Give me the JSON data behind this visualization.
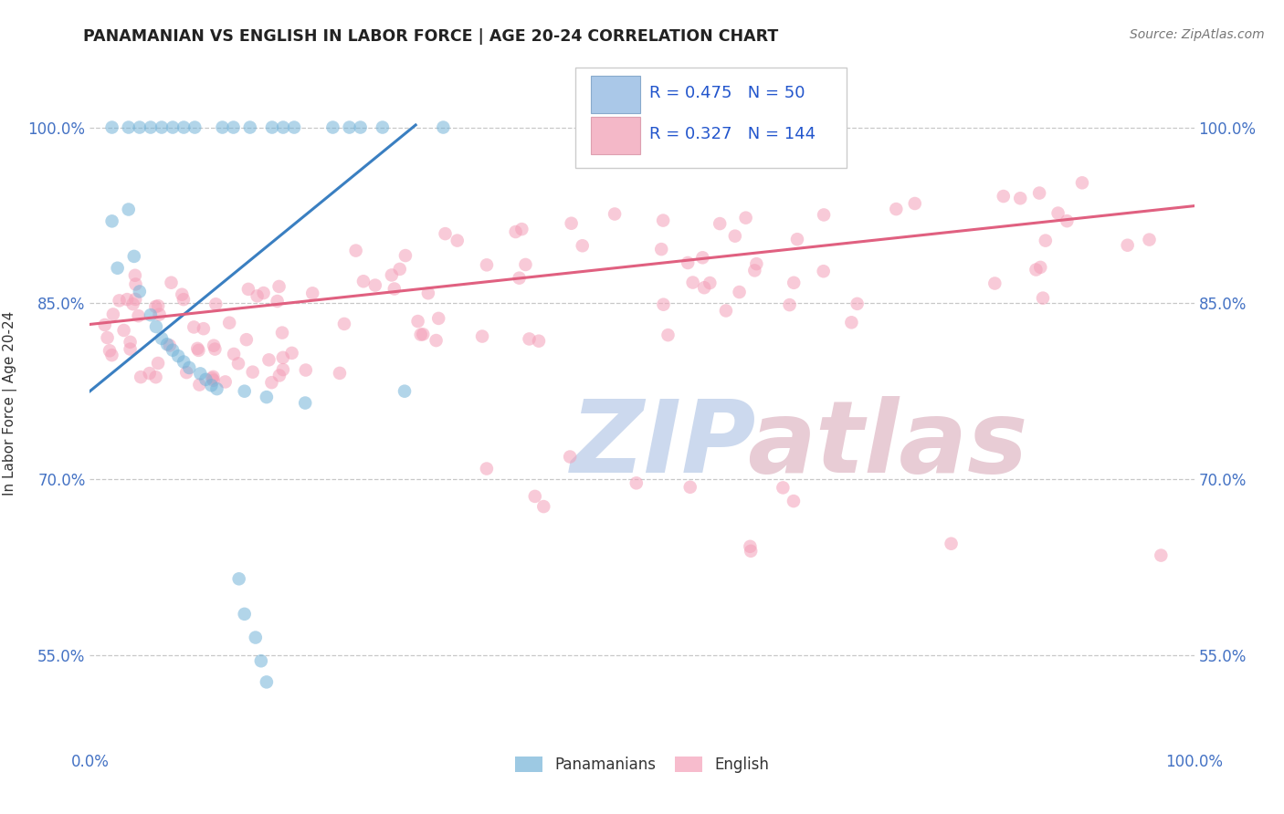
{
  "title": "PANAMANIAN VS ENGLISH IN LABOR FORCE | AGE 20-24 CORRELATION CHART",
  "source": "Source: ZipAtlas.com",
  "ylabel": "In Labor Force | Age 20-24",
  "xlim": [
    0.0,
    1.0
  ],
  "ylim": [
    0.47,
    1.06
  ],
  "ytick_positions": [
    0.55,
    0.7,
    0.85,
    1.0
  ],
  "ytick_labels": [
    "55.0%",
    "70.0%",
    "85.0%",
    "100.0%"
  ],
  "blue_R": 0.475,
  "blue_N": 50,
  "pink_R": 0.327,
  "pink_N": 144,
  "blue_color": "#74b3d8",
  "pink_color": "#f4a0b8",
  "blue_line_color": "#3a7fc1",
  "pink_line_color": "#e06080",
  "blue_trend_x": [
    0.0,
    0.295
  ],
  "blue_trend_y": [
    0.775,
    1.002
  ],
  "pink_trend_x": [
    0.0,
    1.0
  ],
  "pink_trend_y": [
    0.832,
    0.933
  ],
  "watermark_zip_color": "#ccd9ee",
  "watermark_atlas_color": "#e8ccd5"
}
